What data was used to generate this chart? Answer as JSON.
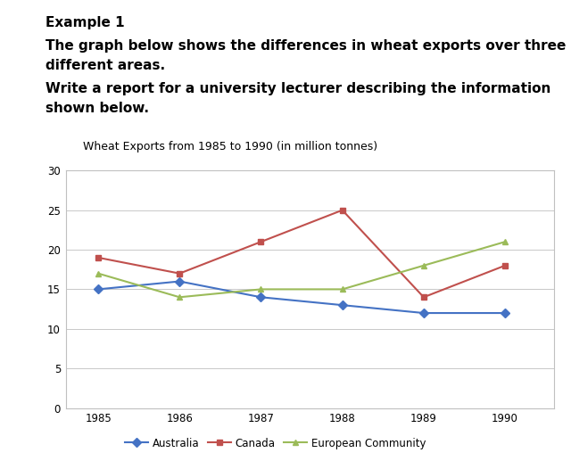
{
  "title": "Wheat Exports from 1985 to 1990 (in million tonnes)",
  "header_line1": "Example 1",
  "header_line2a": "The graph below shows the differences in wheat exports over three",
  "header_line2b": "different areas.",
  "header_line3a": "Write a report for a university lecturer describing the information",
  "header_line3b": "shown below.",
  "years": [
    1985,
    1986,
    1987,
    1988,
    1989,
    1990
  ],
  "australia": [
    15,
    16,
    14,
    13,
    12,
    12
  ],
  "canada": [
    19,
    17,
    21,
    25,
    14,
    18
  ],
  "european_community": [
    17,
    14,
    15,
    15,
    18,
    21
  ],
  "australia_color": "#4472C4",
  "canada_color": "#C0504D",
  "ec_color": "#9BBB59",
  "ylim": [
    0,
    30
  ],
  "yticks": [
    0,
    5,
    10,
    15,
    20,
    25,
    30
  ],
  "background_color": "#ffffff",
  "grid_color": "#c8c8c8",
  "box_color": "#c0c0c0",
  "header_fontsize": 11,
  "title_fontsize": 9
}
